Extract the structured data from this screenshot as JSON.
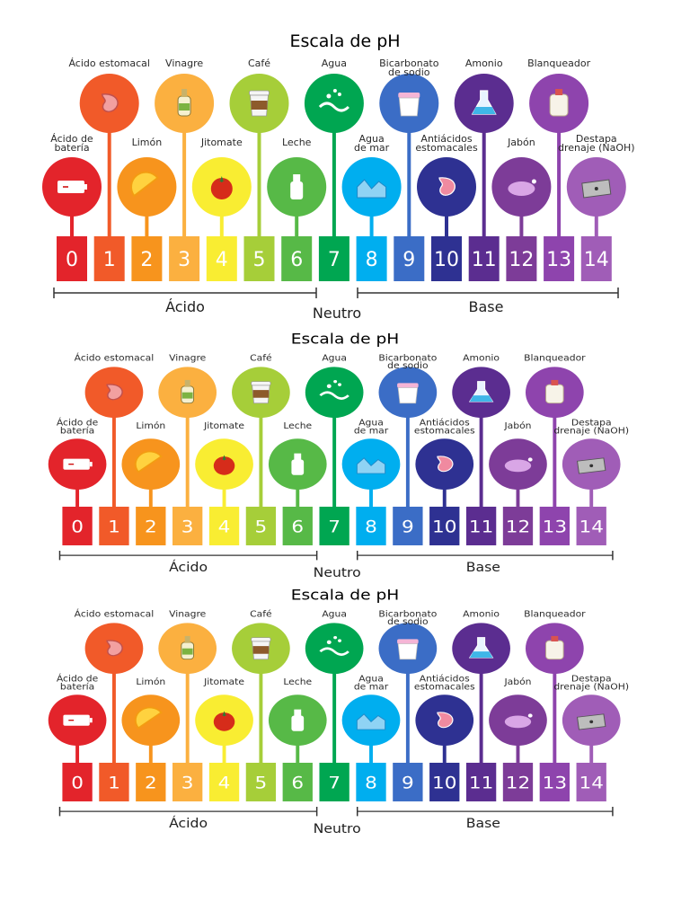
{
  "panels_count": 3,
  "scale": {
    "title": "Escala de pH",
    "numbers": [
      "0",
      "1",
      "2",
      "3",
      "4",
      "5",
      "6",
      "7",
      "8",
      "9",
      "10",
      "11",
      "12",
      "13",
      "14"
    ],
    "colors": [
      "#e3242b",
      "#f15a29",
      "#f7941d",
      "#fbb040",
      "#f9ed32",
      "#a6ce39",
      "#57b947",
      "#00a651",
      "#00aeef",
      "#3b6dc6",
      "#2e3192",
      "#5b2d90",
      "#7d3c98",
      "#8e44ad",
      "#a05db7"
    ],
    "top_items": [
      {
        "label": "Ácido estomacal",
        "icon": "stomach-icon",
        "index": 1
      },
      {
        "label": "Vinagre",
        "icon": "vinegar-bottle-icon",
        "index": 3
      },
      {
        "label": "Café",
        "icon": "coffee-cup-icon",
        "index": 5
      },
      {
        "label": "Agua",
        "icon": "water-splash-icon",
        "index": 7
      },
      {
        "label": "Bicarbonato\nde sodio",
        "icon": "baking-soda-icon",
        "index": 9
      },
      {
        "label": "Amonio",
        "icon": "flask-icon",
        "index": 11
      },
      {
        "label": "Blanqueador",
        "icon": "bleach-jug-icon",
        "index": 13
      }
    ],
    "bottom_items": [
      {
        "label": "Ácido de\nbatería",
        "icon": "battery-icon",
        "index": 0
      },
      {
        "label": "Limón",
        "icon": "lemon-icon",
        "index": 2
      },
      {
        "label": "Jitomate",
        "icon": "tomato-icon",
        "index": 4
      },
      {
        "label": "Leche",
        "icon": "milk-bottle-icon",
        "index": 6
      },
      {
        "label": "Agua\nde mar",
        "icon": "sea-water-icon",
        "index": 8
      },
      {
        "label": "Antiácidos\nestomacales",
        "icon": "antacid-stomach-icon",
        "index": 10
      },
      {
        "label": "Jabón",
        "icon": "soap-icon",
        "index": 12
      },
      {
        "label": "Destapa\ndrenaje (NaOH)",
        "icon": "drain-sink-icon",
        "index": 14
      }
    ],
    "acid_label": "Ácido",
    "neutral_label": "Neutro",
    "base_label": "Base"
  }
}
